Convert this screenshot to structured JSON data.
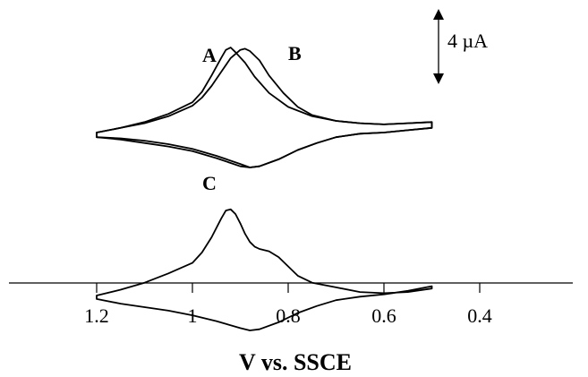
{
  "chart_data": {
    "type": "line",
    "title": "",
    "xlabel": "V vs. SSCE",
    "ylabel": "",
    "xlim": [
      1.3,
      0.4
    ],
    "x_reversed": true,
    "x_ticks": [
      1.2,
      1.0,
      0.8,
      0.6,
      0.4
    ],
    "x_tick_labels": [
      "1.2",
      "1",
      "0.8",
      "0.6",
      "0.4"
    ],
    "grid": false,
    "y_axis_shown": false,
    "current_unit": "µA",
    "scale_bar": {
      "value": 4,
      "unit": "µA",
      "label": "4 µA"
    },
    "series": [
      {
        "name": "A",
        "offset_uA": 0,
        "forward": [
          [
            0.5,
            0.9
          ],
          [
            0.55,
            0.8
          ],
          [
            0.6,
            0.7
          ],
          [
            0.65,
            0.8
          ],
          [
            0.7,
            1.0
          ],
          [
            0.75,
            1.4
          ],
          [
            0.8,
            2.2
          ],
          [
            0.84,
            3.4
          ],
          [
            0.87,
            4.8
          ],
          [
            0.89,
            6.0
          ],
          [
            0.91,
            6.9
          ],
          [
            0.92,
            7.3
          ],
          [
            0.93,
            7.1
          ],
          [
            0.94,
            6.4
          ],
          [
            0.96,
            4.9
          ],
          [
            0.98,
            3.5
          ],
          [
            1.0,
            2.6
          ],
          [
            1.05,
            1.6
          ],
          [
            1.1,
            0.9
          ],
          [
            1.15,
            0.4
          ],
          [
            1.2,
            0.0
          ]
        ],
        "reverse": [
          [
            1.2,
            -0.4
          ],
          [
            1.15,
            -0.6
          ],
          [
            1.1,
            -0.9
          ],
          [
            1.05,
            -1.2
          ],
          [
            1.0,
            -1.6
          ],
          [
            0.95,
            -2.2
          ],
          [
            0.9,
            -2.9
          ],
          [
            0.88,
            -3.0
          ],
          [
            0.86,
            -2.9
          ],
          [
            0.82,
            -2.3
          ],
          [
            0.78,
            -1.5
          ],
          [
            0.74,
            -0.9
          ],
          [
            0.7,
            -0.4
          ],
          [
            0.65,
            -0.1
          ],
          [
            0.6,
            0.0
          ],
          [
            0.55,
            0.2
          ],
          [
            0.5,
            0.4
          ]
        ]
      },
      {
        "name": "B",
        "offset_uA": 0,
        "forward": [
          [
            0.5,
            0.9
          ],
          [
            0.55,
            0.8
          ],
          [
            0.6,
            0.7
          ],
          [
            0.65,
            0.8
          ],
          [
            0.7,
            1.0
          ],
          [
            0.75,
            1.5
          ],
          [
            0.78,
            2.2
          ],
          [
            0.81,
            3.4
          ],
          [
            0.84,
            4.9
          ],
          [
            0.86,
            6.2
          ],
          [
            0.88,
            7.0
          ],
          [
            0.89,
            7.2
          ],
          [
            0.9,
            7.1
          ],
          [
            0.92,
            6.4
          ],
          [
            0.94,
            5.2
          ],
          [
            0.96,
            4.0
          ],
          [
            0.98,
            3.0
          ],
          [
            1.0,
            2.3
          ],
          [
            1.05,
            1.4
          ],
          [
            1.1,
            0.8
          ],
          [
            1.15,
            0.4
          ],
          [
            1.2,
            0.0
          ]
        ],
        "reverse": [
          [
            1.2,
            -0.4
          ],
          [
            1.15,
            -0.5
          ],
          [
            1.1,
            -0.7
          ],
          [
            1.05,
            -1.0
          ],
          [
            1.0,
            -1.4
          ],
          [
            0.95,
            -2.0
          ],
          [
            0.9,
            -2.7
          ],
          [
            0.88,
            -3.0
          ],
          [
            0.86,
            -2.9
          ],
          [
            0.82,
            -2.3
          ],
          [
            0.78,
            -1.5
          ],
          [
            0.74,
            -0.9
          ],
          [
            0.7,
            -0.4
          ],
          [
            0.65,
            -0.1
          ],
          [
            0.6,
            0.0
          ],
          [
            0.55,
            0.2
          ],
          [
            0.5,
            0.4
          ]
        ]
      },
      {
        "name": "C",
        "offset_uA": -14,
        "forward": [
          [
            0.5,
            0.6
          ],
          [
            0.55,
            0.3
          ],
          [
            0.6,
            0.2
          ],
          [
            0.65,
            0.3
          ],
          [
            0.7,
            0.7
          ],
          [
            0.75,
            1.1
          ],
          [
            0.78,
            1.7
          ],
          [
            0.8,
            2.5
          ],
          [
            0.82,
            3.3
          ],
          [
            0.84,
            3.8
          ],
          [
            0.86,
            4.0
          ],
          [
            0.87,
            4.2
          ],
          [
            0.88,
            4.6
          ],
          [
            0.89,
            5.3
          ],
          [
            0.9,
            6.2
          ],
          [
            0.91,
            7.0
          ],
          [
            0.92,
            7.4
          ],
          [
            0.93,
            7.3
          ],
          [
            0.94,
            6.6
          ],
          [
            0.96,
            5.0
          ],
          [
            0.98,
            3.7
          ],
          [
            1.0,
            2.8
          ],
          [
            1.05,
            1.9
          ],
          [
            1.1,
            1.1
          ],
          [
            1.15,
            0.5
          ],
          [
            1.2,
            0.0
          ]
        ],
        "reverse": [
          [
            1.2,
            -0.3
          ],
          [
            1.15,
            -0.7
          ],
          [
            1.1,
            -1.0
          ],
          [
            1.05,
            -1.3
          ],
          [
            1.0,
            -1.7
          ],
          [
            0.95,
            -2.2
          ],
          [
            0.9,
            -2.8
          ],
          [
            0.88,
            -3.0
          ],
          [
            0.86,
            -2.9
          ],
          [
            0.82,
            -2.3
          ],
          [
            0.78,
            -1.5
          ],
          [
            0.74,
            -0.9
          ],
          [
            0.7,
            -0.4
          ],
          [
            0.65,
            -0.1
          ],
          [
            0.6,
            0.1
          ],
          [
            0.55,
            0.4
          ],
          [
            0.5,
            0.8
          ]
        ]
      }
    ]
  }
}
